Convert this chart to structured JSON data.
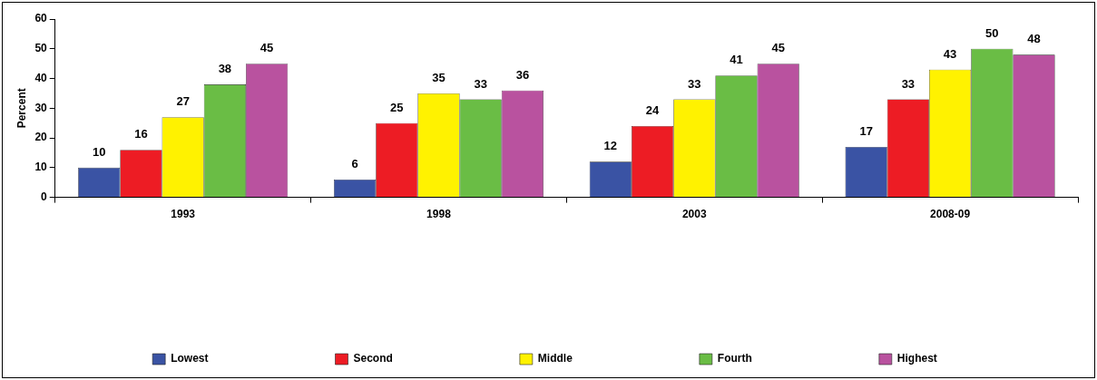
{
  "chart_data": {
    "type": "bar",
    "ylabel": "Percent",
    "categories": [
      "1993",
      "1998",
      "2003",
      "2008-09"
    ],
    "series": [
      {
        "name": "Lowest",
        "color": "#3a53a4",
        "values": [
          10,
          6,
          12,
          17
        ]
      },
      {
        "name": "Second",
        "color": "#ed1c24",
        "values": [
          16,
          25,
          24,
          33
        ]
      },
      {
        "name": "Middle",
        "color": "#fff200",
        "values": [
          27,
          35,
          33,
          43
        ]
      },
      {
        "name": "Fourth",
        "color": "#6abd45",
        "values": [
          38,
          33,
          41,
          50
        ]
      },
      {
        "name": "Highest",
        "color": "#b9529f",
        "values": [
          45,
          36,
          45,
          48
        ]
      }
    ],
    "ylim": [
      0,
      60
    ],
    "yticks": [
      0,
      10,
      20,
      30,
      40,
      50,
      60
    ],
    "grid": false,
    "legend": "bottom",
    "data_labels": true
  }
}
